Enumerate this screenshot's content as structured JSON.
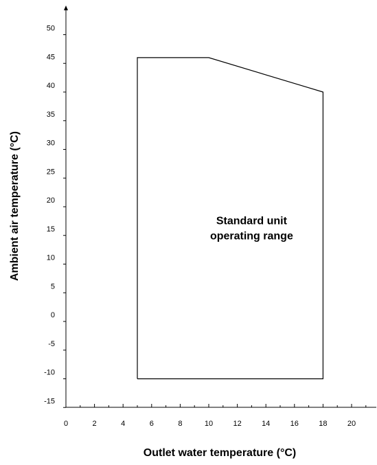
{
  "chart_data": {
    "type": "area",
    "title": "",
    "xlabel": "Outlet water temperature (°C)",
    "ylabel": "Ambient air temperature (°C)",
    "xlim": [
      0,
      22
    ],
    "ylim": [
      -15,
      55
    ],
    "x_ticks": [
      0,
      2,
      4,
      6,
      8,
      10,
      12,
      14,
      16,
      18,
      20
    ],
    "x_minor_ticks": [
      1,
      3,
      5,
      7,
      9,
      11,
      13,
      15,
      17,
      19,
      21
    ],
    "y_ticks": [
      -15,
      -10,
      -5,
      0,
      5,
      10,
      15,
      20,
      25,
      30,
      35,
      40,
      45,
      50
    ],
    "grid": false,
    "region": {
      "label_lines": [
        "Standard unit",
        "operating range"
      ],
      "label_position": [
        13,
        16
      ],
      "points": [
        {
          "x": 5,
          "y": -10
        },
        {
          "x": 5,
          "y": 46
        },
        {
          "x": 10,
          "y": 46
        },
        {
          "x": 18,
          "y": 40
        },
        {
          "x": 18,
          "y": -10
        }
      ]
    },
    "colors": {
      "line": "#000000",
      "background": "#ffffff"
    }
  }
}
